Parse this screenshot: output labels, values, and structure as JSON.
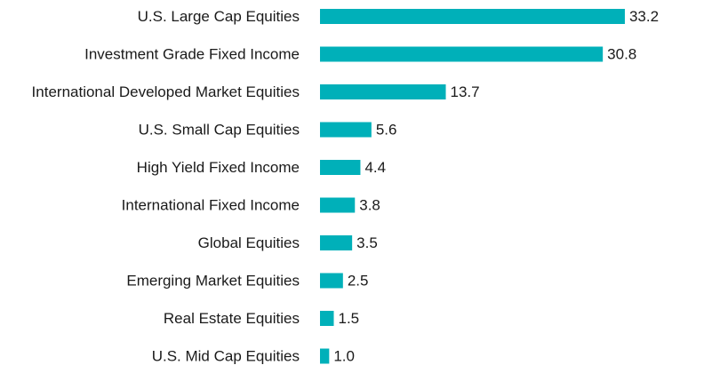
{
  "chart_data": {
    "type": "bar",
    "orientation": "horizontal",
    "categories": [
      "U.S. Large Cap Equities",
      "Investment Grade Fixed Income",
      "International Developed Market Equities",
      "U.S. Small Cap Equities",
      "High Yield Fixed Income",
      "International Fixed Income",
      "Global Equities",
      "Emerging Market Equities",
      "Real Estate Equities",
      "U.S. Mid Cap Equities"
    ],
    "values": [
      33.2,
      30.8,
      13.7,
      5.6,
      4.4,
      3.8,
      3.5,
      2.5,
      1.5,
      1.0
    ],
    "value_labels": [
      "33.2",
      "30.8",
      "13.7",
      "5.6",
      "4.4",
      "3.8",
      "3.5",
      "2.5",
      "1.5",
      "1.0"
    ],
    "title": "",
    "xlabel": "",
    "ylabel": "",
    "xlim": [
      0,
      35
    ],
    "grid": false,
    "legend": "none",
    "bar_color": "#00b0b9"
  }
}
